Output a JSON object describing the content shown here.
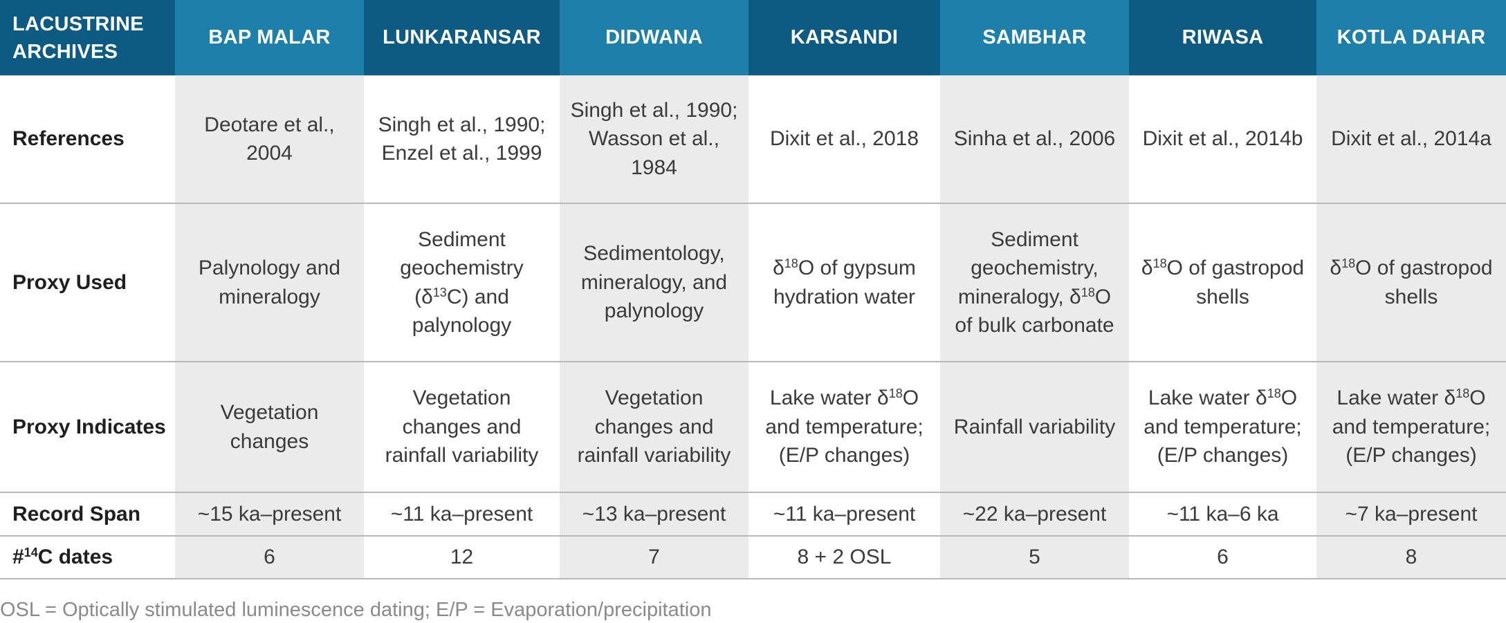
{
  "header": {
    "first": "LACUSTRINE ARCHIVES",
    "sites": [
      "BAP MALAR",
      "LUNKARANSAR",
      "DIDWANA",
      "KARSANDI",
      "SAMBHAR",
      "RIWASA",
      "KOTLA DAHAR"
    ]
  },
  "rows": {
    "references": {
      "label": "References",
      "cells": [
        "Deotare et al., 2004",
        "Singh et al., 1990; Enzel et al., 1999",
        "Singh et al., 1990; Wasson et al., 1984",
        "Dixit et al., 2018",
        "Sinha et al., 2006",
        "Dixit et al., 2014b",
        "Dixit et al., 2014a"
      ]
    },
    "proxy_used": {
      "label": "Proxy Used",
      "cells": [
        "Palynology and mineralogy",
        "Sediment geochemistry (δ13C) and palynology",
        "Sedimentology, mineralogy, and palynology",
        "δ18O of gypsum hydration water",
        "Sediment geochemistry, mineralogy, δ18O of bulk carbonate",
        "δ18O of gastropod shells",
        "δ18O of gastropod shells"
      ]
    },
    "proxy_indicates": {
      "label": "Proxy Indicates",
      "cells": [
        "Vegetation changes",
        "Vegetation changes and rainfall variability",
        "Vegetation changes and rainfall variability",
        "Lake water δ18O and temperature; (E/P changes)",
        "Rainfall variability",
        "Lake water δ18O and temperature; (E/P changes)",
        "Lake water δ18O and temperature; (E/P changes)"
      ]
    },
    "record_span": {
      "label": "Record Span",
      "cells": [
        "~15 ka–present",
        "~11 ka–present",
        "~13 ka–present",
        "~11 ka–present",
        "~22 ka–present",
        "~11 ka–6 ka",
        "~7 ka–present"
      ]
    },
    "c14_dates": {
      "label": "#14C dates",
      "cells": [
        "6",
        "12",
        "7",
        "8 + 2 OSL",
        "5",
        "6",
        "8"
      ]
    }
  },
  "footnote": "OSL = Optically stimulated luminescence dating; E/P = Evaporation/precipitation",
  "colors": {
    "header_dark": "#0d5a82",
    "header_light": "#1e7fa8",
    "shaded_column": "#ebebeb",
    "footnote_text": "#8a8a8a"
  }
}
